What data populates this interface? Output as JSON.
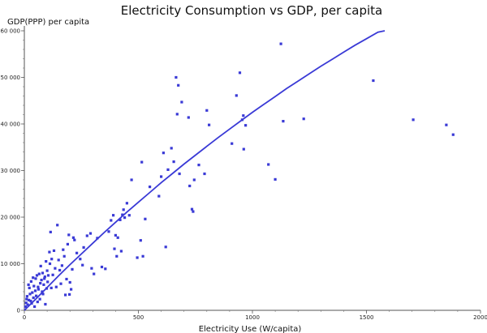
{
  "chart_data": {
    "type": "scatter",
    "title": "Electricity Consumption vs GDP, per capita",
    "xlabel": "Electricity Use (W/capita)",
    "ylabel": "GDP(PPP) per capita",
    "xlim": [
      0,
      2000
    ],
    "ylim": [
      0,
      60000
    ],
    "x_ticks": [
      0,
      500,
      1000,
      1500,
      2000
    ],
    "y_ticks": [
      0,
      10000,
      20000,
      30000,
      40000,
      50000,
      60000
    ],
    "x_tick_labels": [
      "0",
      "500",
      "1000",
      "1500",
      "2000"
    ],
    "y_tick_labels": [
      "0",
      "10 000",
      "20 000",
      "30 000",
      "40 000",
      "50 000",
      "60 000"
    ],
    "grid": false,
    "colors": {
      "points": "#3a3ad6",
      "fit": "#3a3ad6",
      "axis": "#555555"
    },
    "series": [
      {
        "points": [
          [
            5,
            800
          ],
          [
            8,
            1600
          ],
          [
            10,
            2400
          ],
          [
            12,
            3000
          ],
          [
            15,
            1200
          ],
          [
            18,
            5500
          ],
          [
            20,
            2200
          ],
          [
            22,
            4800
          ],
          [
            25,
            3500
          ],
          [
            28,
            2000
          ],
          [
            30,
            6200
          ],
          [
            32,
            1500
          ],
          [
            35,
            3800
          ],
          [
            38,
            7000
          ],
          [
            40,
            2700
          ],
          [
            42,
            5200
          ],
          [
            45,
            800
          ],
          [
            48,
            4200
          ],
          [
            50,
            6800
          ],
          [
            52,
            3100
          ],
          [
            55,
            7500
          ],
          [
            58,
            1800
          ],
          [
            60,
            5000
          ],
          [
            62,
            4500
          ],
          [
            65,
            7800
          ],
          [
            68,
            2400
          ],
          [
            70,
            5800
          ],
          [
            72,
            9500
          ],
          [
            75,
            6500
          ],
          [
            78,
            4000
          ],
          [
            80,
            8000
          ],
          [
            82,
            3500
          ],
          [
            85,
            5500
          ],
          [
            88,
            6800
          ],
          [
            90,
            7200
          ],
          [
            92,
            1300
          ],
          [
            95,
            10500
          ],
          [
            98,
            4700
          ],
          [
            100,
            8500
          ],
          [
            102,
            6100
          ],
          [
            105,
            7500
          ],
          [
            110,
            12500
          ],
          [
            112,
            10000
          ],
          [
            115,
            16800
          ],
          [
            118,
            4800
          ],
          [
            120,
            11000
          ],
          [
            125,
            7600
          ],
          [
            130,
            12800
          ],
          [
            135,
            9000
          ],
          [
            140,
            5000
          ],
          [
            145,
            18300
          ],
          [
            150,
            10800
          ],
          [
            155,
            8600
          ],
          [
            160,
            5700
          ],
          [
            165,
            9600
          ],
          [
            170,
            13000
          ],
          [
            175,
            11600
          ],
          [
            180,
            3300
          ],
          [
            185,
            6700
          ],
          [
            190,
            14200
          ],
          [
            195,
            16200
          ],
          [
            198,
            3400
          ],
          [
            200,
            6000
          ],
          [
            205,
            4500
          ],
          [
            210,
            8800
          ],
          [
            215,
            15600
          ],
          [
            220,
            15100
          ],
          [
            230,
            12300
          ],
          [
            245,
            11000
          ],
          [
            255,
            9700
          ],
          [
            260,
            13500
          ],
          [
            275,
            16000
          ],
          [
            290,
            16500
          ],
          [
            295,
            9000
          ],
          [
            305,
            7800
          ],
          [
            320,
            15500
          ],
          [
            340,
            9300
          ],
          [
            355,
            8900
          ],
          [
            370,
            16900
          ],
          [
            380,
            19300
          ],
          [
            390,
            20400
          ],
          [
            395,
            13200
          ],
          [
            400,
            16100
          ],
          [
            405,
            11600
          ],
          [
            410,
            15600
          ],
          [
            420,
            19400
          ],
          [
            425,
            12700
          ],
          [
            430,
            20500
          ],
          [
            435,
            21600
          ],
          [
            440,
            19900
          ],
          [
            450,
            23000
          ],
          [
            460,
            20400
          ],
          [
            470,
            28000
          ],
          [
            495,
            11300
          ],
          [
            510,
            15000
          ],
          [
            515,
            31800
          ],
          [
            520,
            11600
          ],
          [
            530,
            19600
          ],
          [
            550,
            26500
          ],
          [
            590,
            24500
          ],
          [
            600,
            28700
          ],
          [
            610,
            33800
          ],
          [
            620,
            13600
          ],
          [
            630,
            30200
          ],
          [
            645,
            34800
          ],
          [
            655,
            31900
          ],
          [
            665,
            50000
          ],
          [
            670,
            42100
          ],
          [
            675,
            48300
          ],
          [
            680,
            29300
          ],
          [
            690,
            44700
          ],
          [
            720,
            41400
          ],
          [
            725,
            26700
          ],
          [
            735,
            21700
          ],
          [
            740,
            21200
          ],
          [
            745,
            28000
          ],
          [
            765,
            31200
          ],
          [
            790,
            29300
          ],
          [
            800,
            42900
          ],
          [
            810,
            39800
          ],
          [
            910,
            35800
          ],
          [
            930,
            46100
          ],
          [
            945,
            51000
          ],
          [
            955,
            40900
          ],
          [
            960,
            41800
          ],
          [
            962,
            34600
          ],
          [
            970,
            39700
          ],
          [
            1070,
            31300
          ],
          [
            1100,
            28100
          ],
          [
            1125,
            57200
          ],
          [
            1135,
            40600
          ],
          [
            1225,
            41100
          ],
          [
            1530,
            49300
          ],
          [
            1705,
            40900
          ],
          [
            1850,
            39800
          ],
          [
            1880,
            37700
          ]
        ]
      }
    ],
    "fit_curve": {
      "points": [
        [
          0,
          0
        ],
        [
          50,
          2400
        ],
        [
          100,
          4900
        ],
        [
          150,
          7400
        ],
        [
          200,
          9800
        ],
        [
          250,
          12100
        ],
        [
          300,
          14400
        ],
        [
          350,
          16700
        ],
        [
          400,
          18900
        ],
        [
          450,
          21100
        ],
        [
          500,
          23200
        ],
        [
          550,
          25300
        ],
        [
          600,
          27400
        ],
        [
          650,
          29400
        ],
        [
          700,
          31400
        ],
        [
          750,
          33300
        ],
        [
          800,
          35200
        ],
        [
          850,
          37100
        ],
        [
          900,
          38900
        ],
        [
          950,
          40700
        ],
        [
          1000,
          42500
        ],
        [
          1050,
          44200
        ],
        [
          1100,
          45900
        ],
        [
          1150,
          47600
        ],
        [
          1200,
          49200
        ],
        [
          1250,
          50800
        ],
        [
          1300,
          52400
        ],
        [
          1350,
          53900
        ],
        [
          1400,
          55400
        ],
        [
          1450,
          56900
        ],
        [
          1500,
          58300
        ],
        [
          1550,
          59700
        ],
        [
          1580,
          60000
        ]
      ]
    }
  }
}
